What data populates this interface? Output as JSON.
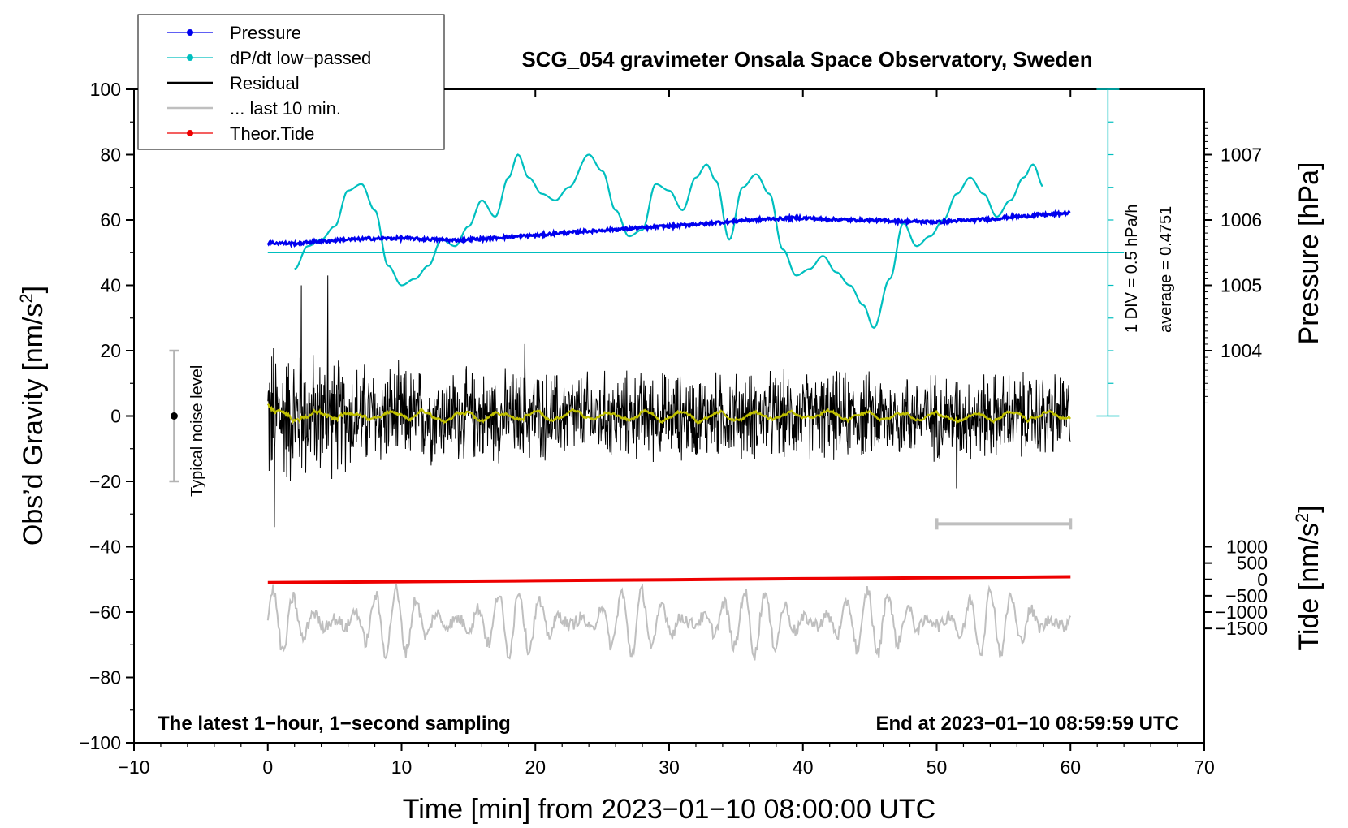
{
  "chart_data": {
    "type": "line",
    "title": "SCG_054 gravimeter Onsala Space Observatory, Sweden",
    "xlabel": "Time [min] from 2023−01−10 08:00:00 UTC",
    "ylabel_left": "Obs’d Gravity [nm/s",
    "ylabel_left_sup": "2",
    "ylabel_left_end": "]",
    "ylabel_right_pressure": "Pressure [hPa]",
    "ylabel_right_tide": "Tide [nm/s",
    "ylabel_right_tide_sup": "2",
    "ylabel_right_tide_end": "]",
    "xlim": [
      -10,
      70
    ],
    "ylim": [
      -100,
      100
    ],
    "x_ticks": [
      "−10",
      "0",
      "10",
      "20",
      "30",
      "40",
      "50",
      "60",
      "70"
    ],
    "x_tick_values": [
      -10,
      0,
      10,
      20,
      30,
      40,
      50,
      60,
      70
    ],
    "y_ticks": [
      "100",
      "80",
      "60",
      "40",
      "20",
      "0",
      "−20",
      "−40",
      "−60",
      "−80",
      "−100"
    ],
    "y_tick_values": [
      100,
      80,
      60,
      40,
      20,
      0,
      -20,
      -40,
      -60,
      -80,
      -100
    ],
    "pressure_ticks": [
      "1007",
      "1006",
      "1005",
      "1004"
    ],
    "pressure_tick_values": [
      1007,
      1006,
      1005,
      1004
    ],
    "pressure_reference": {
      "pressure": 1006,
      "gravity": 60,
      "gravity_per_hPa": 20
    },
    "tide_ticks": [
      "1000",
      "500",
      "0",
      "−500",
      "−1000",
      "−1500"
    ],
    "tide_tick_values": [
      1000,
      500,
      0,
      -500,
      -1000,
      -1500
    ],
    "tide_reference": {
      "tide": 0,
      "gravity": -50,
      "gravity_per_nm": 0.02
    },
    "legend": [
      {
        "label": "Pressure",
        "color": "#0000ee",
        "marker": true
      },
      {
        "label": "dP/dt low−passed",
        "color": "#00bfbf",
        "marker": true
      },
      {
        "label": "Residual",
        "color": "#000000",
        "marker": false
      },
      {
        "label": "... last 10 min.",
        "color": "#bfbfbf",
        "marker": false
      },
      {
        "label": "Theor.Tide",
        "color": "#ee0000",
        "marker": true
      }
    ],
    "pressure_series": {
      "name": "Pressure",
      "x": [
        0,
        2,
        4,
        6,
        8,
        10,
        12,
        14,
        16,
        18,
        20,
        22,
        24,
        26,
        28,
        30,
        32,
        34,
        36,
        38,
        40,
        42,
        44,
        46,
        48,
        50,
        52,
        54,
        56,
        58,
        60
      ],
      "y": [
        53,
        52.8,
        53.5,
        54,
        54.3,
        54.4,
        54.1,
        53.8,
        54.2,
        54.8,
        55.3,
        56,
        56.6,
        57.1,
        57.6,
        58.1,
        58.7,
        59.3,
        60,
        60.4,
        60.6,
        60.2,
        60,
        59.8,
        59.5,
        59.4,
        59.8,
        60.3,
        61,
        61.6,
        62.1
      ]
    },
    "dpdt_series": {
      "name": "dP/dt low−passed",
      "x": [
        2,
        3,
        4,
        5,
        6,
        7,
        8,
        9,
        10,
        11,
        12,
        13,
        14,
        15,
        16,
        17,
        18,
        18.7,
        19.5,
        20.5,
        21.5,
        22.5,
        24,
        25,
        26,
        27,
        28,
        29,
        30,
        31,
        32,
        32.8,
        33.5,
        34.5,
        35.5,
        36.5,
        37.5,
        38.5,
        39.5,
        40.5,
        41.5,
        42.5,
        43.5,
        44.5,
        45.3,
        46.5,
        47.5,
        48.5,
        49.5,
        50.5,
        51.5,
        52.5,
        53.5,
        54.5,
        55.5,
        56.5,
        57.2,
        58
      ],
      "y": [
        45,
        52,
        54,
        58,
        69,
        71,
        63,
        46,
        40,
        42,
        46,
        54,
        52,
        58,
        66,
        61,
        73,
        80,
        73,
        68,
        66,
        70,
        80,
        75,
        63,
        55,
        57,
        71,
        69,
        63,
        73,
        77,
        72,
        54,
        70,
        74,
        68,
        51,
        43,
        45,
        49,
        44,
        40,
        34,
        27,
        42,
        59,
        52,
        55,
        60,
        68,
        73,
        68,
        61,
        66,
        73,
        77,
        70
      ]
    },
    "dpdt_reference_line": 50,
    "dpdt_scale": {
      "text_div": "1 DIV = 0.5 hPa/h",
      "text_avg": "average = 0.4751"
    },
    "residual_series": {
      "name": "Residual",
      "x_range": [
        0,
        60
      ],
      "typical_amplitude": 12,
      "peaks": [
        {
          "x": 0.5,
          "y": -34
        },
        {
          "x": 2.5,
          "y": 40
        },
        {
          "x": 4.5,
          "y": 43
        },
        {
          "x": 19.2,
          "y": 22
        },
        {
          "x": 51.5,
          "y": -22
        }
      ]
    },
    "smoothed_residual": {
      "name": "smoothed",
      "color": "#bfbf00",
      "amplitude": 3
    },
    "last10_series": {
      "name": "... last 10 min.",
      "baseline": -63,
      "amplitude": 9,
      "range": [
        -83,
        -44
      ]
    },
    "last10_window_bar": {
      "x_start": 50,
      "x_end": 60,
      "y": -33
    },
    "tide_series": {
      "name": "Theor.Tide",
      "x": [
        0,
        10,
        20,
        30,
        40,
        50,
        60
      ],
      "y": [
        -51,
        -50.7,
        -50.4,
        -50.1,
        -49.8,
        -49.5,
        -49.2
      ]
    },
    "noise_bar": {
      "x": -7,
      "y_low": -20,
      "y_high": 20,
      "label": "Typical noise level"
    },
    "annotations": {
      "bottom_left": "The latest 1−hour, 1−second sampling",
      "bottom_right": "End at 2023−01−10 08:59:59 UTC"
    }
  }
}
